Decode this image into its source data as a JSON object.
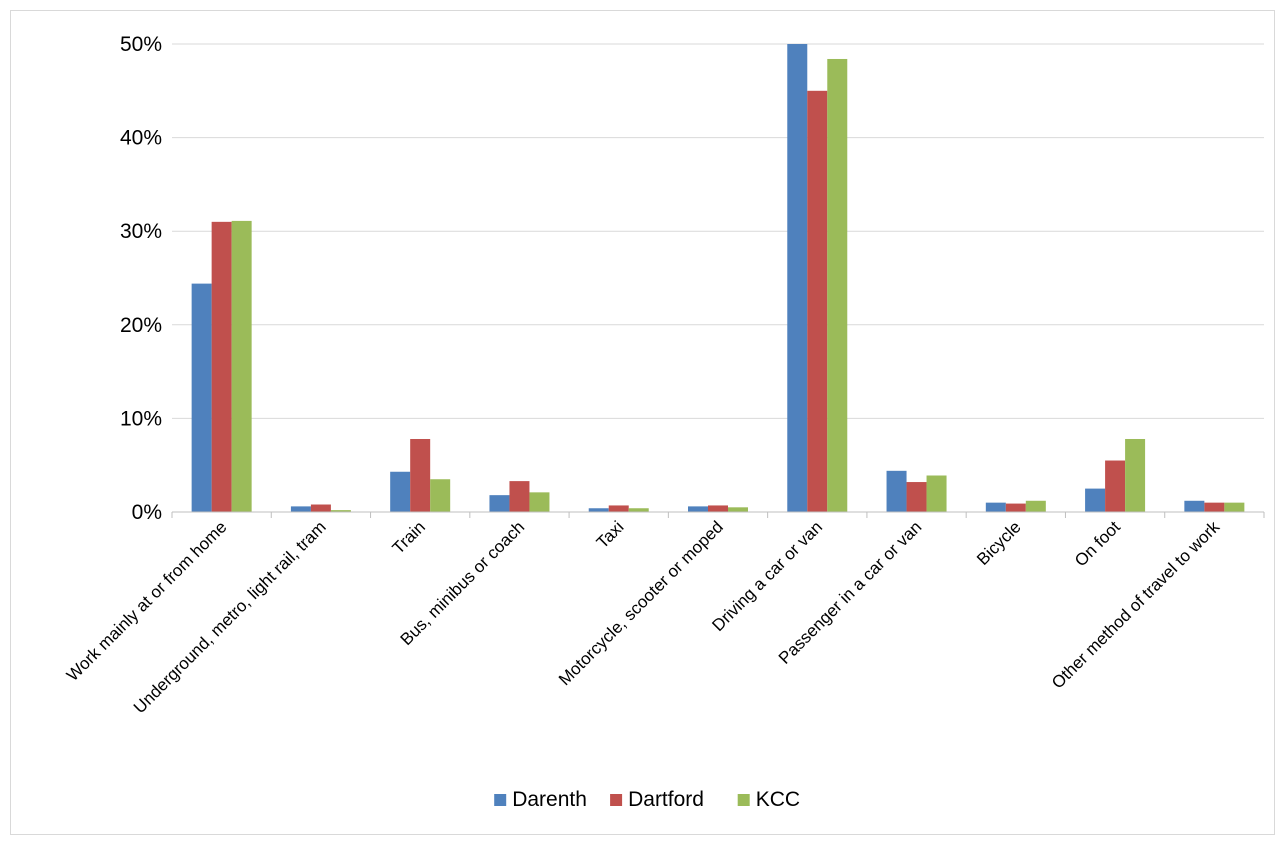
{
  "chart_data": {
    "type": "bar",
    "title": "",
    "xlabel": "",
    "ylabel": "",
    "ylim": [
      0,
      50
    ],
    "y_ticks": [
      0,
      10,
      20,
      30,
      40,
      50
    ],
    "y_tick_labels": [
      "0%",
      "10%",
      "20%",
      "30%",
      "40%",
      "50%"
    ],
    "grid": true,
    "legend_position": "bottom",
    "categories": [
      "Work mainly at or from home",
      "Underground, metro, light rail, tram",
      "Train",
      "Bus, minibus or coach",
      "Taxi",
      "Motorcycle, scooter or moped",
      "Driving a car or van",
      "Passenger in a car or van",
      "Bicycle",
      "On foot",
      "Other method of travel to work"
    ],
    "series": [
      {
        "name": "Darenth",
        "color": "#4f81bd",
        "values": [
          24.4,
          0.6,
          4.3,
          1.8,
          0.4,
          0.6,
          50.0,
          4.4,
          1.0,
          2.5,
          1.2
        ]
      },
      {
        "name": "Dartford",
        "color": "#c0504d",
        "values": [
          31.0,
          0.8,
          7.8,
          3.3,
          0.7,
          0.7,
          45.0,
          3.2,
          0.9,
          5.5,
          1.0
        ]
      },
      {
        "name": "KCC",
        "color": "#9bbb59",
        "values": [
          31.1,
          0.2,
          3.5,
          2.1,
          0.4,
          0.5,
          48.4,
          3.9,
          1.2,
          7.8,
          1.0
        ]
      }
    ]
  }
}
